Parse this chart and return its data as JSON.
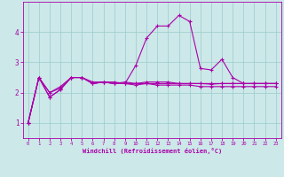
{
  "xlabel": "Windchill (Refroidissement éolien,°C)",
  "bg_color": "#cce8e8",
  "line_color": "#aa00aa",
  "grid_color": "#99cccc",
  "axis_color": "#aa00aa",
  "xlim": [
    -0.5,
    23.5
  ],
  "ylim": [
    0.5,
    5.0
  ],
  "xticks": [
    0,
    1,
    2,
    3,
    4,
    5,
    6,
    7,
    8,
    9,
    10,
    11,
    12,
    13,
    14,
    15,
    16,
    17,
    18,
    19,
    20,
    21,
    22,
    23
  ],
  "yticks": [
    1,
    2,
    3,
    4
  ],
  "series": [
    [
      1.0,
      2.5,
      1.85,
      2.1,
      2.5,
      2.5,
      2.3,
      2.35,
      2.3,
      2.3,
      2.3,
      2.3,
      2.3,
      2.3,
      2.3,
      2.3,
      2.3,
      2.3,
      2.3,
      2.3,
      2.3,
      2.3,
      2.3,
      2.3
    ],
    [
      1.0,
      2.5,
      1.85,
      2.1,
      2.5,
      2.5,
      2.3,
      2.35,
      2.3,
      2.3,
      2.25,
      2.3,
      2.25,
      2.25,
      2.25,
      2.25,
      2.2,
      2.2,
      2.2,
      2.2,
      2.2,
      2.2,
      2.2,
      2.2
    ],
    [
      1.0,
      2.5,
      2.0,
      2.15,
      2.5,
      2.5,
      2.35,
      2.35,
      2.35,
      2.3,
      2.9,
      3.8,
      4.2,
      4.2,
      4.55,
      4.35,
      2.8,
      2.75,
      3.1,
      2.5,
      2.3,
      2.3,
      2.3,
      2.3
    ],
    [
      1.0,
      2.5,
      2.0,
      2.2,
      2.5,
      2.5,
      2.3,
      2.35,
      2.3,
      2.35,
      2.3,
      2.35,
      2.35,
      2.35,
      2.3,
      2.3,
      2.3,
      2.28,
      2.3,
      2.3,
      2.3,
      2.3,
      2.3,
      2.3
    ]
  ]
}
